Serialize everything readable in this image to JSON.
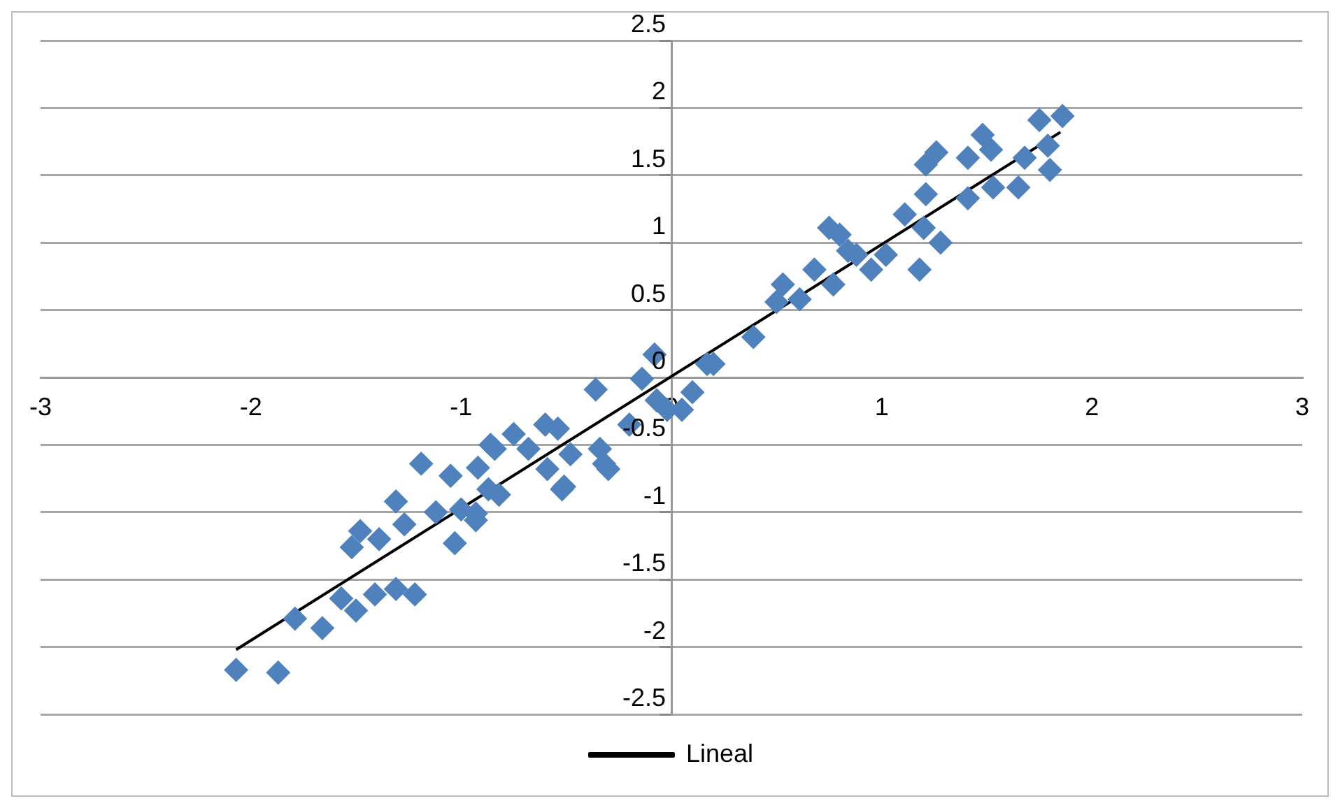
{
  "chart_data": {
    "type": "scatter",
    "xlim": [
      -3,
      3
    ],
    "xticks": [
      -3,
      -2,
      -1,
      0,
      1,
      2,
      3
    ],
    "ylim": [
      -2.5,
      2.5
    ],
    "yticks": [
      -2.5,
      -2,
      -1.5,
      -1,
      -0.5,
      0,
      0.5,
      1,
      1.5,
      2,
      2.5
    ],
    "grid": "y",
    "legend": "bottom",
    "marker": "diamond",
    "series": [
      {
        "type": "scatter",
        "color": "#4f81bd",
        "x": [
          -2.07,
          -1.87,
          -1.79,
          -1.66,
          -1.57,
          -1.5,
          -1.41,
          -1.31,
          -1.22,
          -1.52,
          -1.48,
          -1.39,
          -1.31,
          -1.27,
          -1.19,
          -1.12,
          -1.03,
          -1.05,
          -0.93,
          -1.0,
          -0.92,
          -0.86,
          -0.87,
          -0.93,
          -0.82,
          -0.84,
          -0.75,
          -0.68,
          -0.6,
          -0.54,
          -0.52,
          -0.48,
          -0.36,
          -0.34,
          -0.32,
          -0.2,
          -0.14,
          -0.08,
          -0.07,
          -0.02,
          0.05,
          0.1,
          0.17,
          -0.59,
          -0.3,
          -0.51,
          0.2,
          0.39,
          0.5,
          0.53,
          0.61,
          0.68,
          0.75,
          0.8,
          0.77,
          0.84,
          0.88,
          0.95,
          1.02,
          1.18,
          1.11,
          1.21,
          1.2,
          1.28,
          1.21,
          1.26,
          1.41,
          1.41,
          1.48,
          1.52,
          1.53,
          1.65,
          1.68,
          1.75,
          1.79,
          1.8,
          1.86
        ],
        "values": [
          -2.17,
          -2.19,
          -1.79,
          -1.86,
          -1.64,
          -1.73,
          -1.61,
          -1.57,
          -1.61,
          -1.26,
          -1.14,
          -1.2,
          -0.92,
          -1.09,
          -0.64,
          -1.0,
          -1.23,
          -0.73,
          -1.06,
          -0.98,
          -0.67,
          -0.5,
          -0.83,
          -1.01,
          -0.87,
          -0.53,
          -0.42,
          -0.53,
          -0.35,
          -0.38,
          -0.83,
          -0.57,
          -0.09,
          -0.53,
          -0.64,
          -0.35,
          -0.01,
          0.17,
          -0.17,
          -0.24,
          -0.24,
          -0.11,
          0.1,
          -0.68,
          -0.68,
          -0.81,
          0.1,
          0.3,
          0.56,
          0.69,
          0.58,
          0.8,
          1.11,
          1.06,
          0.69,
          0.94,
          0.91,
          0.8,
          0.91,
          0.8,
          1.21,
          1.36,
          1.11,
          1.0,
          1.58,
          1.67,
          1.33,
          1.63,
          1.8,
          1.69,
          1.41,
          1.41,
          1.63,
          1.91,
          1.72,
          1.54,
          1.94
        ]
      },
      {
        "type": "line",
        "name": "Lineal",
        "color": "#000000",
        "marker": "none",
        "x": [
          -2.07,
          1.85
        ],
        "values": [
          -2.02,
          1.82
        ]
      }
    ]
  }
}
